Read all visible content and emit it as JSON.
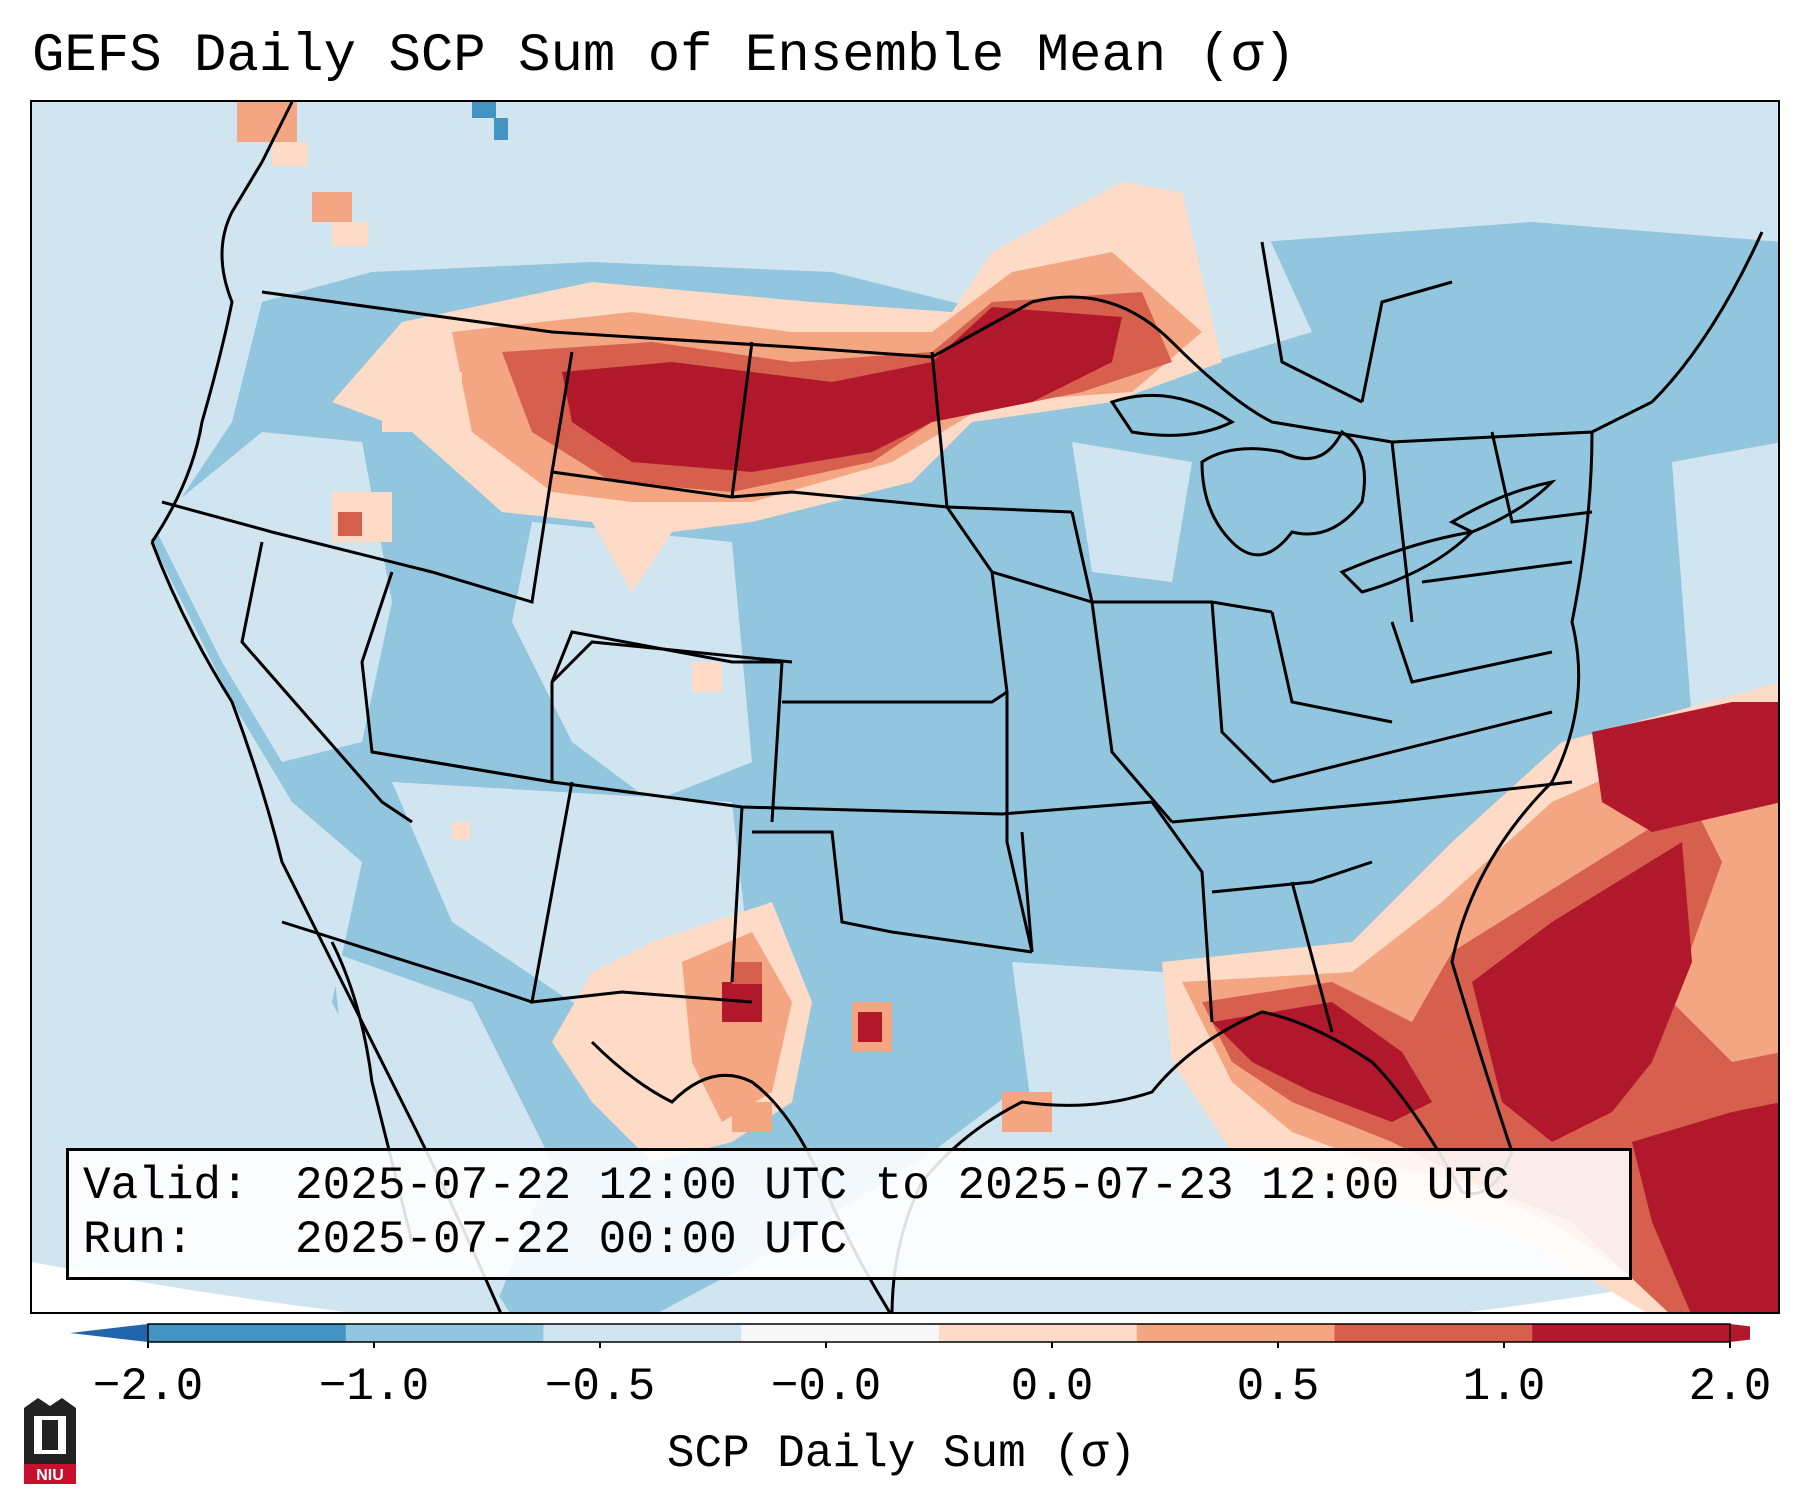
{
  "title": "GEFS Daily SCP Sum of Ensemble Mean (σ)",
  "valid_label": "Valid:",
  "valid_value": "2025-07-22 12:00 UTC to 2025-07-23 12:00 UTC",
  "run_label": "Run:",
  "run_value": "2025-07-22 00:00 UTC",
  "colorbar": {
    "label": "SCP Daily Sum (σ)",
    "ticks": [
      "−2.0",
      "−1.0",
      "−0.5",
      "−0.0",
      "0.0",
      "0.5",
      "1.0",
      "2.0"
    ],
    "colors": [
      "#4393c3",
      "#92c5de",
      "#d1e5f0",
      "#f7f7f7",
      "#fddbc7",
      "#f4a582",
      "#d6604d",
      "#b2182b"
    ],
    "extend_low_color": "#2166ac",
    "extend_high_color": "#b2182b"
  },
  "map": {
    "ocean_color": "#d1e5f0",
    "field_colors": {
      "light_blue": "#d1e5f0",
      "mid_blue": "#92c5de",
      "deep_blue": "#4393c3",
      "light_red": "#fddbc7",
      "salmon": "#f4a582",
      "red": "#d6604d",
      "dark_red": "#b2182b"
    }
  },
  "logo": {
    "text": "NIU",
    "color": "#c8102e"
  }
}
